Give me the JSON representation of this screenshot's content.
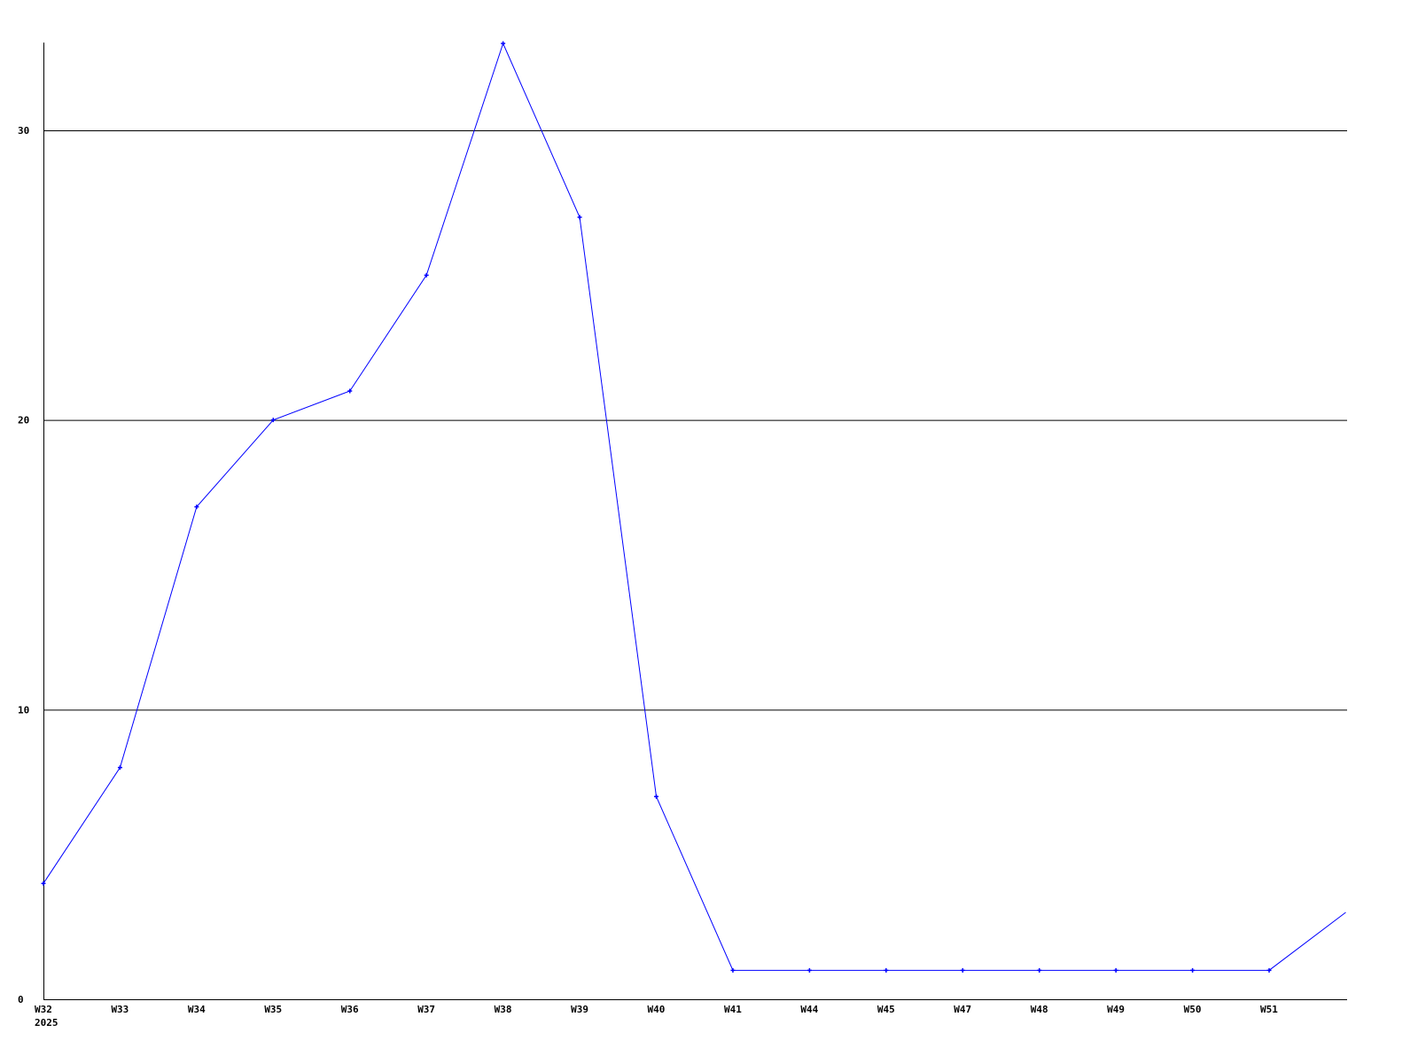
{
  "chart_data": {
    "type": "line",
    "title": "",
    "xlabel": "",
    "ylabel": "",
    "categories": [
      "W32",
      "W33",
      "W34",
      "W35",
      "W36",
      "W37",
      "W38",
      "W39",
      "W40",
      "W41",
      "W44",
      "W45",
      "W47",
      "W48",
      "W49",
      "W50",
      "W51",
      ""
    ],
    "x_sublabel": "2025",
    "series": [
      {
        "values": [
          4,
          8,
          17,
          20,
          21,
          25,
          33,
          27,
          7,
          1,
          1,
          1,
          1,
          1,
          1,
          1,
          1,
          3
        ],
        "color": "#0000ff"
      }
    ],
    "yticks": [
      0,
      10,
      20,
      30
    ],
    "ylim": [
      0,
      33
    ],
    "grid": "horizontal",
    "legend": "none",
    "colors": {
      "line": "#0000ff",
      "grid": "#000000",
      "axis": "#000000"
    }
  }
}
